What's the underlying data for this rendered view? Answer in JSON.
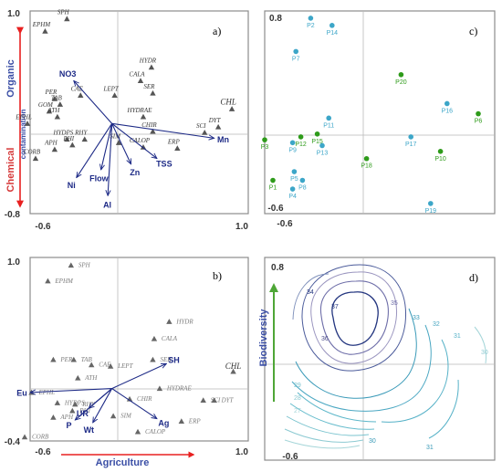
{
  "chart_data": [
    {
      "panel": "a)",
      "type": "scatter",
      "xlim": [
        -0.6,
        1.0
      ],
      "ylim": [
        -0.8,
        1.0
      ],
      "ticks": {
        "x_min": "-0.6",
        "x_max": "1.0",
        "y_min": "-0.8",
        "y_max": "1.0"
      },
      "side_labels": {
        "top": "Organic",
        "middle": "contamination",
        "bottom": "Chemical"
      },
      "species": [
        {
          "label": "SPH",
          "x": -0.33,
          "y": 0.93
        },
        {
          "label": "EPHM",
          "x": -0.49,
          "y": 0.82
        },
        {
          "label": "HYDR",
          "x": 0.29,
          "y": 0.5
        },
        {
          "label": "CALA",
          "x": 0.21,
          "y": 0.38
        },
        {
          "label": "SER",
          "x": 0.3,
          "y": 0.27
        },
        {
          "label": "CAE",
          "x": -0.23,
          "y": 0.25
        },
        {
          "label": "LEPT",
          "x": 0.02,
          "y": 0.25
        },
        {
          "label": "PER",
          "x": -0.42,
          "y": 0.22
        },
        {
          "label": "TAB",
          "x": -0.38,
          "y": 0.17
        },
        {
          "label": "GOM",
          "x": -0.46,
          "y": 0.11
        },
        {
          "label": "ATH",
          "x": -0.4,
          "y": 0.06
        },
        {
          "label": "EPHL",
          "x": -0.62,
          "y": 0.0
        },
        {
          "label": "HYDRAE",
          "x": 0.23,
          "y": 0.06
        },
        {
          "label": "CHL",
          "x": 0.88,
          "y": 0.13
        },
        {
          "label": "DYT",
          "x": 0.78,
          "y": -0.03
        },
        {
          "label": "SCI",
          "x": 0.68,
          "y": -0.08
        },
        {
          "label": "CHIR",
          "x": 0.3,
          "y": -0.07
        },
        {
          "label": "HYDPS",
          "x": -0.33,
          "y": -0.14
        },
        {
          "label": "RHY",
          "x": -0.2,
          "y": -0.14
        },
        {
          "label": "PHI",
          "x": -0.29,
          "y": -0.19
        },
        {
          "label": "SIM",
          "x": 0.05,
          "y": -0.17
        },
        {
          "label": "APH",
          "x": -0.42,
          "y": -0.23
        },
        {
          "label": "CALOP",
          "x": 0.23,
          "y": -0.21
        },
        {
          "label": "ERP",
          "x": 0.48,
          "y": -0.22
        },
        {
          "label": "CORB",
          "x": -0.56,
          "y": -0.31
        }
      ],
      "vectors": [
        {
          "label": "NO3",
          "x": -0.28,
          "y": 0.38
        },
        {
          "label": "Mn",
          "x": 0.75,
          "y": -0.13
        },
        {
          "label": "TSS",
          "x": 0.33,
          "y": -0.31
        },
        {
          "label": "Zn",
          "x": 0.14,
          "y": -0.36
        },
        {
          "label": "Flow",
          "x": -0.08,
          "y": -0.41
        },
        {
          "label": "Ni",
          "x": -0.26,
          "y": -0.48
        },
        {
          "label": "Al",
          "x": -0.03,
          "y": -0.64
        }
      ]
    },
    {
      "panel": "b)",
      "type": "scatter",
      "xlim": [
        -0.6,
        1.0
      ],
      "ylim": [
        -0.4,
        1.0
      ],
      "ticks": {
        "x_min": "-0.6",
        "x_max": "1.0",
        "y_min": "-0.4",
        "y_max": "1.0"
      },
      "xlabel": "Agriculture",
      "species": [
        {
          "label": "SPH",
          "x": -0.3,
          "y": 0.94
        },
        {
          "label": "EPHM",
          "x": -0.47,
          "y": 0.82
        },
        {
          "label": "HYDR",
          "x": 0.42,
          "y": 0.51
        },
        {
          "label": "CALA",
          "x": 0.31,
          "y": 0.38
        },
        {
          "label": "PER",
          "x": -0.43,
          "y": 0.22
        },
        {
          "label": "TAB",
          "x": -0.28,
          "y": 0.22
        },
        {
          "label": "CAE",
          "x": -0.15,
          "y": 0.18
        },
        {
          "label": "LEPT",
          "x": -0.01,
          "y": 0.17
        },
        {
          "label": "SER",
          "x": 0.3,
          "y": 0.22
        },
        {
          "label": "ATH",
          "x": -0.25,
          "y": 0.08
        },
        {
          "label": "CHL",
          "x": 0.89,
          "y": 0.13
        },
        {
          "label": "EPHL",
          "x": -0.59,
          "y": -0.03
        },
        {
          "label": "HYDRAE",
          "x": 0.35,
          "y": 0.0
        },
        {
          "label": "HYDPS",
          "x": -0.4,
          "y": -0.11
        },
        {
          "label": "RHY",
          "x": -0.27,
          "y": -0.12
        },
        {
          "label": "CHIR",
          "x": 0.13,
          "y": -0.08
        },
        {
          "label": "SCI",
          "x": 0.67,
          "y": -0.09
        },
        {
          "label": "DYT",
          "x": 0.75,
          "y": -0.09
        },
        {
          "label": "PHI",
          "x": -0.29,
          "y": -0.17
        },
        {
          "label": "SIM",
          "x": 0.01,
          "y": -0.21
        },
        {
          "label": "APH",
          "x": -0.43,
          "y": -0.22
        },
        {
          "label": "ERP",
          "x": 0.51,
          "y": -0.25
        },
        {
          "label": "CALOP",
          "x": 0.19,
          "y": -0.33
        },
        {
          "label": "CORB",
          "x": -0.64,
          "y": -0.37
        }
      ],
      "vectors": [
        {
          "label": "SH",
          "x": 0.4,
          "y": 0.19
        },
        {
          "label": "Eu",
          "x": -0.6,
          "y": -0.03
        },
        {
          "label": "UR",
          "x": -0.17,
          "y": -0.15
        },
        {
          "label": "Wt",
          "x": -0.14,
          "y": -0.26
        },
        {
          "label": "Ag",
          "x": 0.33,
          "y": -0.23
        },
        {
          "label": "P",
          "x": -0.27,
          "y": -0.24
        }
      ]
    },
    {
      "panel": "c)",
      "type": "scatter",
      "xlim": [
        -0.6,
        0.8
      ],
      "ylim": [
        -0.6,
        0.8
      ],
      "ticks": {
        "x_min": "-0.6",
        "y_min": "-0.6",
        "y_max": "0.8"
      },
      "colors": {
        "cyan": "#3ca6c8",
        "green": "#2e9b1a"
      },
      "sites": [
        {
          "label": "P2",
          "x": -0.32,
          "y": 0.75,
          "group": "cyan"
        },
        {
          "label": "P14",
          "x": -0.19,
          "y": 0.7,
          "group": "cyan"
        },
        {
          "label": "P7",
          "x": -0.41,
          "y": 0.52,
          "group": "cyan"
        },
        {
          "label": "P20",
          "x": 0.23,
          "y": 0.36,
          "group": "green"
        },
        {
          "label": "P16",
          "x": 0.51,
          "y": 0.16,
          "group": "cyan"
        },
        {
          "label": "P6",
          "x": 0.7,
          "y": 0.09,
          "group": "green"
        },
        {
          "label": "P11",
          "x": -0.21,
          "y": 0.06,
          "group": "cyan"
        },
        {
          "label": "P15",
          "x": -0.28,
          "y": -0.05,
          "group": "green"
        },
        {
          "label": "P12",
          "x": -0.38,
          "y": -0.07,
          "group": "green"
        },
        {
          "label": "P9",
          "x": -0.43,
          "y": -0.11,
          "group": "cyan"
        },
        {
          "label": "P13",
          "x": -0.25,
          "y": -0.13,
          "group": "cyan"
        },
        {
          "label": "P17",
          "x": 0.29,
          "y": -0.07,
          "group": "cyan"
        },
        {
          "label": "P3",
          "x": -0.6,
          "y": -0.09,
          "group": "green"
        },
        {
          "label": "P10",
          "x": 0.47,
          "y": -0.17,
          "group": "green"
        },
        {
          "label": "P18",
          "x": 0.02,
          "y": -0.22,
          "group": "green"
        },
        {
          "label": "P5",
          "x": -0.42,
          "y": -0.31,
          "group": "cyan"
        },
        {
          "label": "P8",
          "x": -0.37,
          "y": -0.37,
          "group": "cyan"
        },
        {
          "label": "P1",
          "x": -0.55,
          "y": -0.37,
          "group": "green"
        },
        {
          "label": "P4",
          "x": -0.43,
          "y": -0.43,
          "group": "cyan"
        },
        {
          "label": "P19",
          "x": 0.41,
          "y": -0.53,
          "group": "cyan"
        }
      ]
    },
    {
      "panel": "d)",
      "type": "contour",
      "xlim": [
        -0.6,
        0.8
      ],
      "ylim": [
        -0.6,
        0.8
      ],
      "ticks": {
        "x_min": "-0.6",
        "y_max": "0.8"
      },
      "ylabel": "Biodiversity",
      "contour_levels": [
        "37",
        "36",
        "35",
        "34",
        "33",
        "32",
        "31",
        "30",
        "29",
        "28",
        "27",
        "31",
        "30"
      ]
    }
  ]
}
